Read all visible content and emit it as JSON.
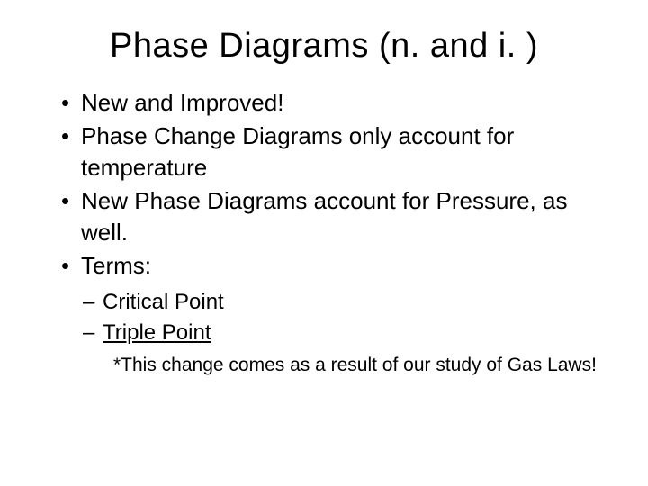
{
  "slide": {
    "title": "Phase Diagrams (n. and i. )",
    "title_fontsize": 38,
    "title_color": "#000000",
    "background_color": "#ffffff",
    "body_fontsize": 26,
    "sub_fontsize": 24,
    "note_fontsize": 21,
    "bullets": [
      {
        "text": "New and Improved!"
      },
      {
        "text": "Phase Change Diagrams only account for temperature"
      },
      {
        "text": "New Phase Diagrams account for Pressure, as well."
      },
      {
        "text": "Terms:"
      }
    ],
    "sub_bullets": [
      {
        "text": "Critical Point",
        "underline": false
      },
      {
        "text": "Triple Point",
        "underline": true
      }
    ],
    "note": "*This change comes as a result of our study of Gas Laws!"
  }
}
